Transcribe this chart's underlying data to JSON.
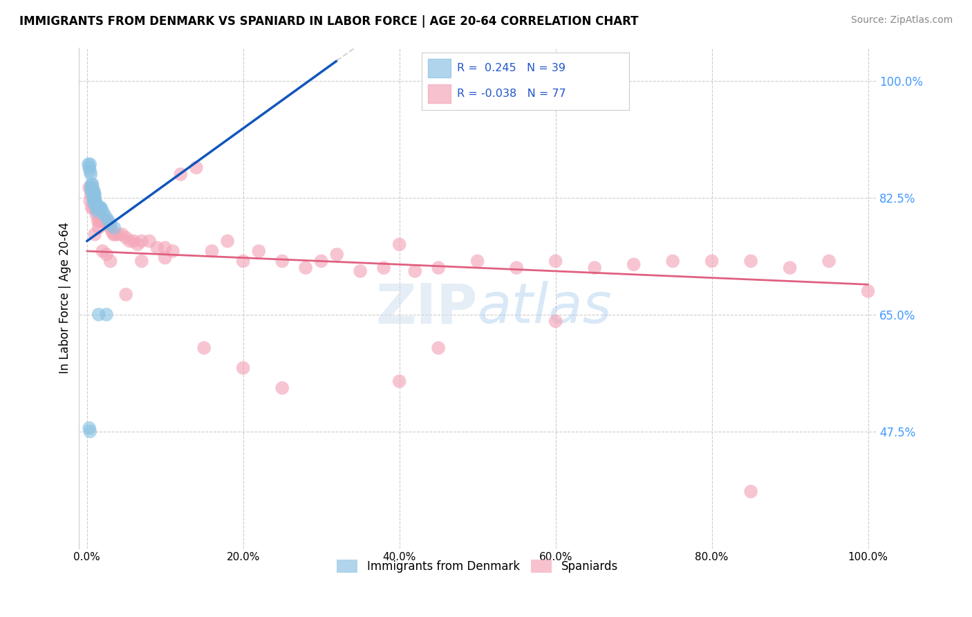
{
  "title": "IMMIGRANTS FROM DENMARK VS SPANIARD IN LABOR FORCE | AGE 20-64 CORRELATION CHART",
  "source": "Source: ZipAtlas.com",
  "ylabel": "In Labor Force | Age 20-64",
  "xlim": [
    -0.01,
    1.01
  ],
  "ylim": [
    0.3,
    1.05
  ],
  "yticks": [
    0.475,
    0.65,
    0.825,
    1.0
  ],
  "ytick_labels": [
    "47.5%",
    "65.0%",
    "82.5%",
    "100.0%"
  ],
  "xticks": [
    0.0,
    0.2,
    0.4,
    0.6,
    0.8,
    1.0
  ],
  "xtick_labels": [
    "0.0%",
    "20.0%",
    "40.0%",
    "60.0%",
    "80.0%",
    "100.0%"
  ],
  "legend_r_blue": "R =  0.245",
  "legend_n_blue": "N = 39",
  "legend_r_pink": "R = -0.038",
  "legend_n_pink": "N = 77",
  "blue_color": "#8DC3E3",
  "pink_color": "#F4A7B9",
  "blue_line_color": "#1155BB",
  "pink_line_color": "#E06080",
  "blue_line_x0": 0.0,
  "blue_line_y0": 0.76,
  "blue_line_x1": 0.32,
  "blue_line_y1": 1.03,
  "pink_line_x0": 0.0,
  "pink_line_y0": 0.745,
  "pink_line_x1": 1.0,
  "pink_line_y1": 0.695,
  "blue_x": [
    0.002,
    0.003,
    0.004,
    0.004,
    0.005,
    0.005,
    0.006,
    0.006,
    0.007,
    0.007,
    0.008,
    0.008,
    0.009,
    0.009,
    0.009,
    0.01,
    0.01,
    0.01,
    0.01,
    0.011,
    0.012,
    0.012,
    0.013,
    0.013,
    0.014,
    0.015,
    0.016,
    0.017,
    0.018,
    0.02,
    0.022,
    0.025,
    0.028,
    0.03,
    0.035,
    0.003,
    0.004,
    0.015,
    0.025
  ],
  "blue_y": [
    0.875,
    0.87,
    0.875,
    0.865,
    0.86,
    0.84,
    0.845,
    0.835,
    0.845,
    0.83,
    0.835,
    0.82,
    0.835,
    0.83,
    0.825,
    0.83,
    0.825,
    0.82,
    0.815,
    0.82,
    0.815,
    0.815,
    0.81,
    0.805,
    0.81,
    0.81,
    0.81,
    0.81,
    0.81,
    0.805,
    0.8,
    0.795,
    0.79,
    0.785,
    0.78,
    0.48,
    0.475,
    0.65,
    0.65
  ],
  "pink_x": [
    0.003,
    0.004,
    0.005,
    0.006,
    0.007,
    0.008,
    0.009,
    0.01,
    0.011,
    0.012,
    0.013,
    0.014,
    0.015,
    0.016,
    0.017,
    0.018,
    0.02,
    0.022,
    0.024,
    0.026,
    0.028,
    0.03,
    0.032,
    0.034,
    0.036,
    0.04,
    0.045,
    0.05,
    0.055,
    0.06,
    0.065,
    0.07,
    0.08,
    0.09,
    0.1,
    0.11,
    0.12,
    0.14,
    0.16,
    0.18,
    0.2,
    0.22,
    0.25,
    0.28,
    0.3,
    0.32,
    0.35,
    0.38,
    0.4,
    0.42,
    0.45,
    0.5,
    0.55,
    0.6,
    0.65,
    0.7,
    0.75,
    0.8,
    0.85,
    0.9,
    0.95,
    1.0,
    0.01,
    0.015,
    0.02,
    0.025,
    0.03,
    0.05,
    0.07,
    0.1,
    0.15,
    0.2,
    0.25,
    0.45,
    0.85,
    0.4,
    0.6
  ],
  "pink_y": [
    0.84,
    0.82,
    0.83,
    0.81,
    0.84,
    0.81,
    0.82,
    0.82,
    0.81,
    0.8,
    0.81,
    0.79,
    0.8,
    0.79,
    0.8,
    0.79,
    0.79,
    0.79,
    0.79,
    0.79,
    0.785,
    0.78,
    0.775,
    0.77,
    0.77,
    0.77,
    0.77,
    0.765,
    0.76,
    0.76,
    0.755,
    0.76,
    0.76,
    0.75,
    0.75,
    0.745,
    0.86,
    0.87,
    0.745,
    0.76,
    0.73,
    0.745,
    0.73,
    0.72,
    0.73,
    0.74,
    0.715,
    0.72,
    0.755,
    0.715,
    0.72,
    0.73,
    0.72,
    0.73,
    0.72,
    0.725,
    0.73,
    0.73,
    0.73,
    0.72,
    0.73,
    0.685,
    0.77,
    0.78,
    0.745,
    0.74,
    0.73,
    0.68,
    0.73,
    0.735,
    0.6,
    0.57,
    0.54,
    0.6,
    0.385,
    0.55,
    0.64
  ],
  "figsize": [
    14.06,
    8.92
  ],
  "dpi": 100
}
